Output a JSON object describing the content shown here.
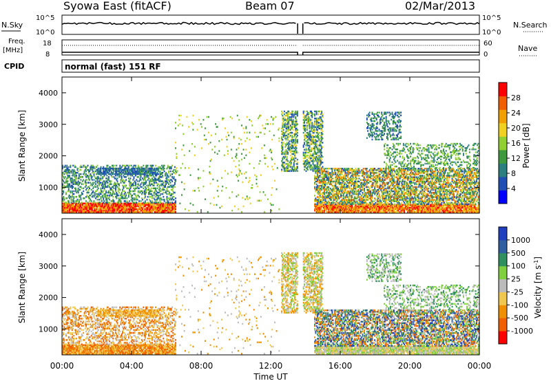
{
  "header": {
    "station": "Syowa East (fitACF)",
    "beam": "Beam 07",
    "date": "02/Mar/2013"
  },
  "summary_panels": {
    "nsky_label": "N.Sky",
    "nsky_ticks": [
      "10^5",
      "10^0"
    ],
    "nsearch_label": "N.Search",
    "nsearch_ticks": [
      "10^5",
      "10^0"
    ],
    "freq_label_1": "Freq.",
    "freq_label_2": "[MHz]",
    "freq_ticks": [
      "18",
      "8"
    ],
    "nave_label": "Nave",
    "nave_ticks": [
      "60",
      "0"
    ],
    "cpid_label": "CPID",
    "cpid_text": "normal (fast) 151 RF"
  },
  "colors": {
    "power_scale": [
      "#0000ff",
      "#1f4fb5",
      "#2b7f7f",
      "#3f9a3f",
      "#8fcf2f",
      "#f0d020",
      "#f0a000",
      "#f06000",
      "#ff0000"
    ],
    "velocity_scale": [
      "#ff0000",
      "#f06000",
      "#f09000",
      "#f0c850",
      "#bbbbbb",
      "#7fcf3f",
      "#2f8f5f",
      "#2f5fa0",
      "#1f3fbf"
    ]
  },
  "chart_data": [
    {
      "type": "heatmap",
      "name": "power",
      "ylabel": "Slant Range [km]",
      "yticks": [
        "4000",
        "3000",
        "2000",
        "1000"
      ],
      "ylim": [
        180,
        4500
      ],
      "colorbar_label": "Power [dB]",
      "colorbar_ticks": [
        "28",
        "24",
        "20",
        "16",
        "12",
        "8",
        "4"
      ],
      "clim": [
        0,
        30
      ]
    },
    {
      "type": "heatmap",
      "name": "velocity",
      "ylabel": "Slant Range [km]",
      "yticks": [
        "4000",
        "3000",
        "2000",
        "1000"
      ],
      "ylim": [
        180,
        4500
      ],
      "colorbar_label": "Velocity [m s^-1]",
      "colorbar_ticks": [
        "1000",
        "500",
        "100",
        "25",
        "-25",
        "-100",
        "-500",
        "-1000"
      ],
      "clim": [
        -1000,
        1000
      ]
    }
  ],
  "xaxis": {
    "label": "Time UT",
    "ticks": [
      "00:00",
      "04:00",
      "08:00",
      "12:00",
      "16:00",
      "20:00",
      "00:00"
    ]
  }
}
